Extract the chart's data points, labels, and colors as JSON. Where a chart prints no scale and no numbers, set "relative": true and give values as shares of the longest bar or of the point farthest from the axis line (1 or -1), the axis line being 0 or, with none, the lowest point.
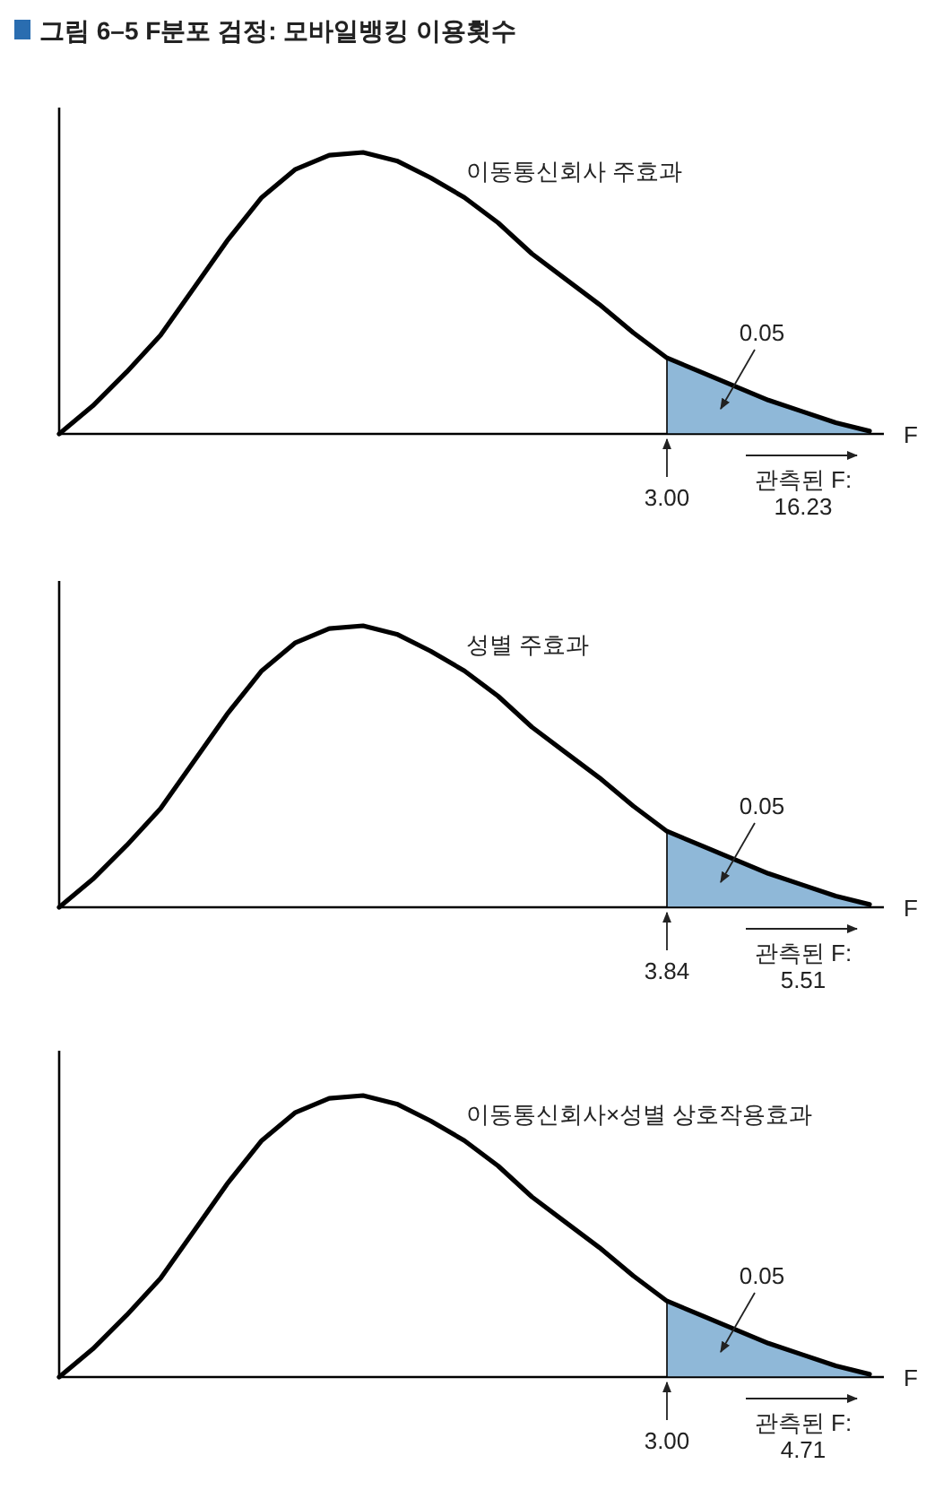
{
  "chart_data": [
    {
      "type": "line",
      "title": "그림 6–5 F분포 검정: 모바일뱅킹 이용횟수",
      "xlabel": "F",
      "relative": true,
      "categories": [
        null,
        null,
        null,
        null,
        null,
        null,
        null,
        null,
        null,
        null,
        null,
        null,
        null,
        null,
        null,
        null,
        null,
        null,
        null,
        null,
        null,
        null,
        null,
        null,
        null
      ],
      "series": [
        {
          "type": "line",
          "color": "#000000",
          "values": [
            0,
            0.1,
            0.22,
            0.35,
            0.52,
            0.69,
            0.84,
            0.94,
            0.99,
            1,
            0.97,
            0.91,
            0.84,
            0.75,
            0.64,
            0.55,
            0.46,
            0.36,
            0.27,
            0.22,
            0.17,
            0.12,
            0.08,
            0.04,
            0.01
          ]
        },
        {
          "type": "area",
          "color": "#8fb8d8",
          "values": [
            null,
            null,
            null,
            null,
            null,
            null,
            null,
            null,
            null,
            null,
            null,
            null,
            null,
            null,
            null,
            null,
            null,
            null,
            0.27,
            0.22,
            0.17,
            0.12,
            0.08,
            0.04,
            0.01
          ]
        }
      ],
      "annotations": [
        "이동통신회사 주효과",
        "0.05",
        "3.00",
        "관측된 F:\n16.23"
      ]
    },
    {
      "type": "line",
      "xlabel": "F",
      "relative": true,
      "categories": [
        null,
        null,
        null,
        null,
        null,
        null,
        null,
        null,
        null,
        null,
        null,
        null,
        null,
        null,
        null,
        null,
        null,
        null,
        null,
        null,
        null,
        null,
        null,
        null,
        null
      ],
      "series": [
        {
          "type": "line",
          "color": "#000000",
          "values": [
            0,
            0.1,
            0.22,
            0.35,
            0.52,
            0.69,
            0.84,
            0.94,
            0.99,
            1,
            0.97,
            0.91,
            0.84,
            0.75,
            0.64,
            0.55,
            0.46,
            0.36,
            0.27,
            0.22,
            0.17,
            0.12,
            0.08,
            0.04,
            0.01
          ]
        },
        {
          "type": "area",
          "color": "#8fb8d8",
          "values": [
            null,
            null,
            null,
            null,
            null,
            null,
            null,
            null,
            null,
            null,
            null,
            null,
            null,
            null,
            null,
            null,
            null,
            null,
            0.27,
            0.22,
            0.17,
            0.12,
            0.08,
            0.04,
            0.01
          ]
        }
      ],
      "annotations": [
        "성별 주효과",
        "0.05",
        "3.84",
        "관측된 F:\n5.51"
      ]
    },
    {
      "type": "line",
      "xlabel": "F",
      "relative": true,
      "categories": [
        null,
        null,
        null,
        null,
        null,
        null,
        null,
        null,
        null,
        null,
        null,
        null,
        null,
        null,
        null,
        null,
        null,
        null,
        null,
        null,
        null,
        null,
        null,
        null,
        null
      ],
      "series": [
        {
          "type": "line",
          "color": "#000000",
          "values": [
            0,
            0.1,
            0.22,
            0.35,
            0.52,
            0.69,
            0.84,
            0.94,
            0.99,
            1,
            0.97,
            0.91,
            0.84,
            0.75,
            0.64,
            0.55,
            0.46,
            0.36,
            0.27,
            0.22,
            0.17,
            0.12,
            0.08,
            0.04,
            0.01
          ]
        },
        {
          "type": "area",
          "color": "#8fb8d8",
          "values": [
            null,
            null,
            null,
            null,
            null,
            null,
            null,
            null,
            null,
            null,
            null,
            null,
            null,
            null,
            null,
            null,
            null,
            null,
            0.27,
            0.22,
            0.17,
            0.12,
            0.08,
            0.04,
            0.01
          ]
        }
      ],
      "annotations": [
        "이동통신회사×성별 상호작용효과",
        "0.05",
        "3.00",
        "관측된 F:\n4.71"
      ]
    }
  ]
}
